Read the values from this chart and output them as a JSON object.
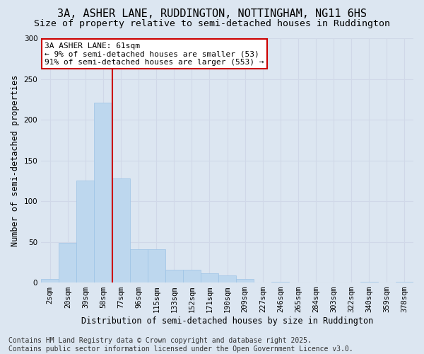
{
  "title": "3A, ASHER LANE, RUDDINGTON, NOTTINGHAM, NG11 6HS",
  "subtitle": "Size of property relative to semi-detached houses in Ruddington",
  "xlabel": "Distribution of semi-detached houses by size in Ruddington",
  "ylabel": "Number of semi-detached properties",
  "categories": [
    "2sqm",
    "20sqm",
    "39sqm",
    "58sqm",
    "77sqm",
    "96sqm",
    "115sqm",
    "133sqm",
    "152sqm",
    "171sqm",
    "190sqm",
    "209sqm",
    "227sqm",
    "246sqm",
    "265sqm",
    "284sqm",
    "303sqm",
    "322sqm",
    "340sqm",
    "359sqm",
    "378sqm"
  ],
  "values": [
    4,
    49,
    125,
    221,
    128,
    41,
    41,
    16,
    16,
    11,
    9,
    4,
    0,
    1,
    0,
    0,
    0,
    0,
    1,
    0,
    1
  ],
  "bar_color": "#bdd7ee",
  "bar_edge_color": "#9dc3e6",
  "grid_color": "#d0d8e8",
  "background_color": "#dce6f1",
  "vline_x": 3.5,
  "vline_color": "#cc0000",
  "annotation_title": "3A ASHER LANE: 61sqm",
  "annotation_line1": "← 9% of semi-detached houses are smaller (53)",
  "annotation_line2": "91% of semi-detached houses are larger (553) →",
  "annotation_box_color": "#ffffff",
  "annotation_box_edge": "#cc0000",
  "footer_line1": "Contains HM Land Registry data © Crown copyright and database right 2025.",
  "footer_line2": "Contains public sector information licensed under the Open Government Licence v3.0.",
  "ylim": [
    0,
    300
  ],
  "yticks": [
    0,
    50,
    100,
    150,
    200,
    250,
    300
  ],
  "title_fontsize": 11,
  "subtitle_fontsize": 9.5,
  "axis_label_fontsize": 8.5,
  "tick_fontsize": 7.5,
  "annotation_fontsize": 8,
  "footer_fontsize": 7
}
